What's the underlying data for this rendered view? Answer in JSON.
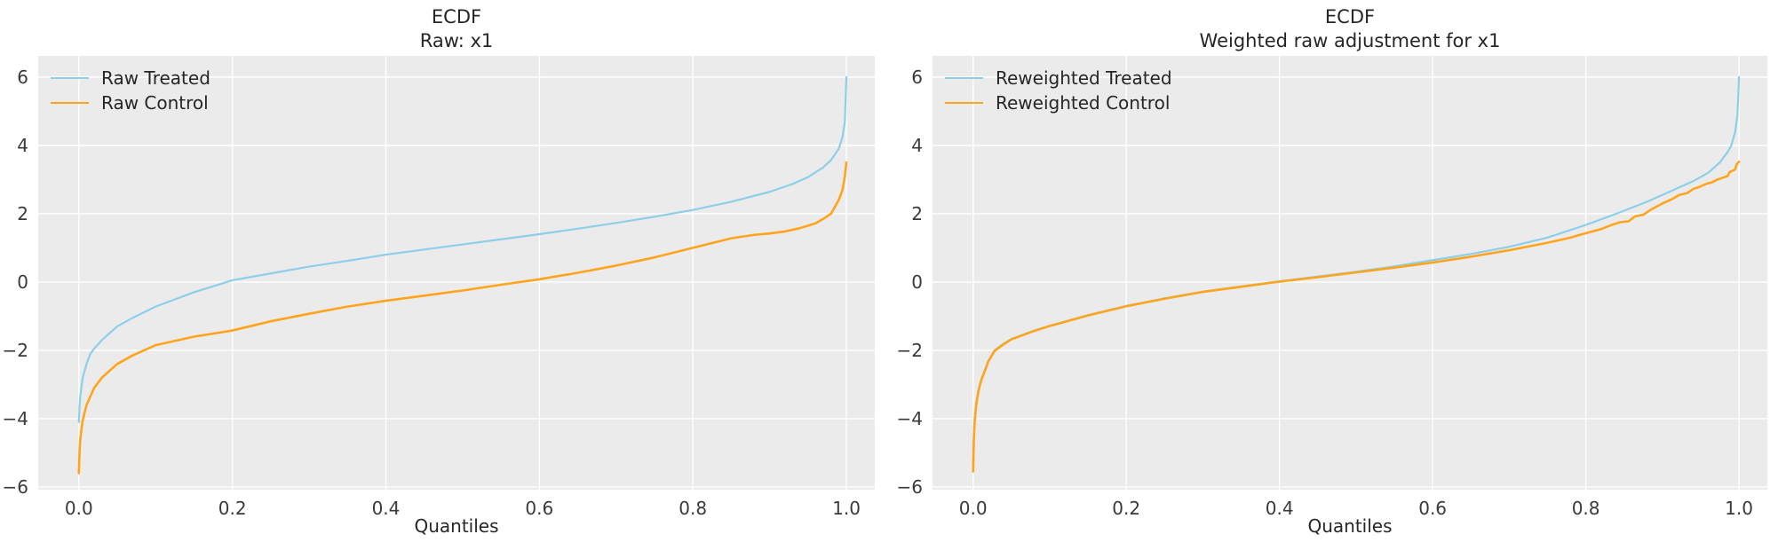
{
  "figure": {
    "background": "#ffffff",
    "axes_background": "#ebebeb",
    "grid_color": "#ffffff",
    "text_color": "#262626"
  },
  "chart_data": [
    {
      "type": "line",
      "title": "ECDF",
      "subtitle": "Raw: x1",
      "xlabel": "Quantiles",
      "grid": true,
      "legend_position": "upper-left",
      "xlim": [
        -0.053,
        1.037
      ],
      "ylim": [
        -6.08,
        6.62
      ],
      "xticks": [
        0.0,
        0.2,
        0.4,
        0.6,
        0.8,
        1.0
      ],
      "xtick_labels": [
        "0.0",
        "0.2",
        "0.4",
        "0.6",
        "0.8",
        "1.0"
      ],
      "yticks": [
        6,
        4,
        2,
        0,
        -2,
        -4,
        -6
      ],
      "ytick_labels": [
        "6",
        "4",
        "2",
        "0",
        "−2",
        "−4",
        "−6"
      ],
      "series": [
        {
          "name": "Raw Treated",
          "color": "#8dcfe9",
          "points": [
            [
              0,
              -4.1
            ],
            [
              0.001,
              -3.6
            ],
            [
              0.002,
              -3.3
            ],
            [
              0.005,
              -2.8
            ],
            [
              0.01,
              -2.4
            ],
            [
              0.015,
              -2.1
            ],
            [
              0.02,
              -1.95
            ],
            [
              0.03,
              -1.7
            ],
            [
              0.05,
              -1.3
            ],
            [
              0.07,
              -1.05
            ],
            [
              0.1,
              -0.72
            ],
            [
              0.15,
              -0.3
            ],
            [
              0.2,
              0.05
            ],
            [
              0.25,
              0.25
            ],
            [
              0.3,
              0.45
            ],
            [
              0.35,
              0.62
            ],
            [
              0.4,
              0.8
            ],
            [
              0.45,
              0.95
            ],
            [
              0.5,
              1.1
            ],
            [
              0.55,
              1.25
            ],
            [
              0.6,
              1.4
            ],
            [
              0.65,
              1.56
            ],
            [
              0.7,
              1.73
            ],
            [
              0.75,
              1.91
            ],
            [
              0.8,
              2.11
            ],
            [
              0.85,
              2.35
            ],
            [
              0.9,
              2.64
            ],
            [
              0.93,
              2.87
            ],
            [
              0.95,
              3.07
            ],
            [
              0.97,
              3.36
            ],
            [
              0.98,
              3.57
            ],
            [
              0.99,
              3.9
            ],
            [
              0.995,
              4.25
            ],
            [
              0.998,
              4.7
            ],
            [
              1,
              6.0
            ]
          ]
        },
        {
          "name": "Raw Control",
          "color": "#ffa41b",
          "points": [
            [
              0,
              -5.6
            ],
            [
              0.001,
              -4.9
            ],
            [
              0.002,
              -4.55
            ],
            [
              0.005,
              -4.05
            ],
            [
              0.01,
              -3.6
            ],
            [
              0.02,
              -3.1
            ],
            [
              0.03,
              -2.8
            ],
            [
              0.05,
              -2.4
            ],
            [
              0.07,
              -2.15
            ],
            [
              0.1,
              -1.85
            ],
            [
              0.15,
              -1.6
            ],
            [
              0.2,
              -1.42
            ],
            [
              0.25,
              -1.15
            ],
            [
              0.3,
              -0.93
            ],
            [
              0.35,
              -0.72
            ],
            [
              0.4,
              -0.55
            ],
            [
              0.45,
              -0.4
            ],
            [
              0.5,
              -0.25
            ],
            [
              0.55,
              -0.08
            ],
            [
              0.6,
              0.08
            ],
            [
              0.65,
              0.27
            ],
            [
              0.7,
              0.48
            ],
            [
              0.75,
              0.72
            ],
            [
              0.8,
              1.0
            ],
            [
              0.85,
              1.28
            ],
            [
              0.88,
              1.38
            ],
            [
              0.9,
              1.42
            ],
            [
              0.92,
              1.48
            ],
            [
              0.94,
              1.58
            ],
            [
              0.95,
              1.65
            ],
            [
              0.96,
              1.72
            ],
            [
              0.97,
              1.85
            ],
            [
              0.98,
              2.0
            ],
            [
              0.985,
              2.2
            ],
            [
              0.99,
              2.4
            ],
            [
              0.995,
              2.7
            ],
            [
              0.998,
              3.1
            ],
            [
              1,
              3.5
            ]
          ]
        }
      ]
    },
    {
      "type": "line",
      "title": "ECDF",
      "subtitle": "Weighted raw adjustment for x1",
      "xlabel": "Quantiles",
      "grid": true,
      "legend_position": "upper-left",
      "xlim": [
        -0.053,
        1.037
      ],
      "ylim": [
        -6.08,
        6.62
      ],
      "xticks": [
        0.0,
        0.2,
        0.4,
        0.6,
        0.8,
        1.0
      ],
      "xtick_labels": [
        "0.0",
        "0.2",
        "0.4",
        "0.6",
        "0.8",
        "1.0"
      ],
      "yticks": [
        6,
        4,
        2,
        0,
        -2,
        -4,
        -6
      ],
      "ytick_labels": [
        "6",
        "4",
        "2",
        "0",
        "−2",
        "−4",
        "−6"
      ],
      "series": [
        {
          "name": "Reweighted Treated",
          "color": "#8dcfe9",
          "points": [
            [
              0,
              -5.5
            ],
            [
              0.0008,
              -4.55
            ],
            [
              0.002,
              -4.0
            ],
            [
              0.004,
              -3.55
            ],
            [
              0.007,
              -3.15
            ],
            [
              0.01,
              -2.9
            ],
            [
              0.02,
              -2.3
            ],
            [
              0.028,
              -2.0
            ],
            [
              0.04,
              -1.8
            ],
            [
              0.05,
              -1.67
            ],
            [
              0.08,
              -1.42
            ],
            [
              0.1,
              -1.28
            ],
            [
              0.15,
              -0.97
            ],
            [
              0.2,
              -0.7
            ],
            [
              0.25,
              -0.48
            ],
            [
              0.3,
              -0.28
            ],
            [
              0.35,
              -0.13
            ],
            [
              0.4,
              0.02
            ],
            [
              0.45,
              0.16
            ],
            [
              0.5,
              0.3
            ],
            [
              0.55,
              0.46
            ],
            [
              0.6,
              0.64
            ],
            [
              0.65,
              0.82
            ],
            [
              0.7,
              1.03
            ],
            [
              0.75,
              1.3
            ],
            [
              0.8,
              1.67
            ],
            [
              0.84,
              2.0
            ],
            [
              0.88,
              2.35
            ],
            [
              0.91,
              2.65
            ],
            [
              0.94,
              2.95
            ],
            [
              0.96,
              3.2
            ],
            [
              0.975,
              3.5
            ],
            [
              0.985,
              3.8
            ],
            [
              0.99,
              4.0
            ],
            [
              0.995,
              4.4
            ],
            [
              0.998,
              4.9
            ],
            [
              1,
              6.0
            ]
          ]
        },
        {
          "name": "Reweighted Control",
          "color": "#ffa41b",
          "points": [
            [
              0,
              -5.55
            ],
            [
              0.001,
              -4.6
            ],
            [
              0.002,
              -4.1
            ],
            [
              0.004,
              -3.6
            ],
            [
              0.007,
              -3.2
            ],
            [
              0.01,
              -2.92
            ],
            [
              0.02,
              -2.32
            ],
            [
              0.028,
              -2.02
            ],
            [
              0.04,
              -1.82
            ],
            [
              0.05,
              -1.68
            ],
            [
              0.08,
              -1.43
            ],
            [
              0.1,
              -1.29
            ],
            [
              0.15,
              -0.98
            ],
            [
              0.2,
              -0.71
            ],
            [
              0.25,
              -0.49
            ],
            [
              0.3,
              -0.29
            ],
            [
              0.35,
              -0.14
            ],
            [
              0.4,
              0.01
            ],
            [
              0.45,
              0.14
            ],
            [
              0.5,
              0.28
            ],
            [
              0.55,
              0.42
            ],
            [
              0.6,
              0.57
            ],
            [
              0.65,
              0.74
            ],
            [
              0.7,
              0.93
            ],
            [
              0.75,
              1.15
            ],
            [
              0.78,
              1.3
            ],
            [
              0.8,
              1.43
            ],
            [
              0.82,
              1.55
            ],
            [
              0.835,
              1.68
            ],
            [
              0.845,
              1.75
            ],
            [
              0.856,
              1.78
            ],
            [
              0.864,
              1.92
            ],
            [
              0.875,
              1.97
            ],
            [
              0.885,
              2.12
            ],
            [
              0.9,
              2.3
            ],
            [
              0.912,
              2.42
            ],
            [
              0.922,
              2.55
            ],
            [
              0.932,
              2.6
            ],
            [
              0.94,
              2.72
            ],
            [
              0.95,
              2.8
            ],
            [
              0.958,
              2.88
            ],
            [
              0.965,
              2.92
            ],
            [
              0.972,
              3.0
            ],
            [
              0.98,
              3.06
            ],
            [
              0.985,
              3.1
            ],
            [
              0.988,
              3.22
            ],
            [
              0.992,
              3.26
            ],
            [
              0.995,
              3.3
            ],
            [
              0.997,
              3.45
            ],
            [
              1,
              3.52
            ]
          ]
        }
      ]
    }
  ]
}
